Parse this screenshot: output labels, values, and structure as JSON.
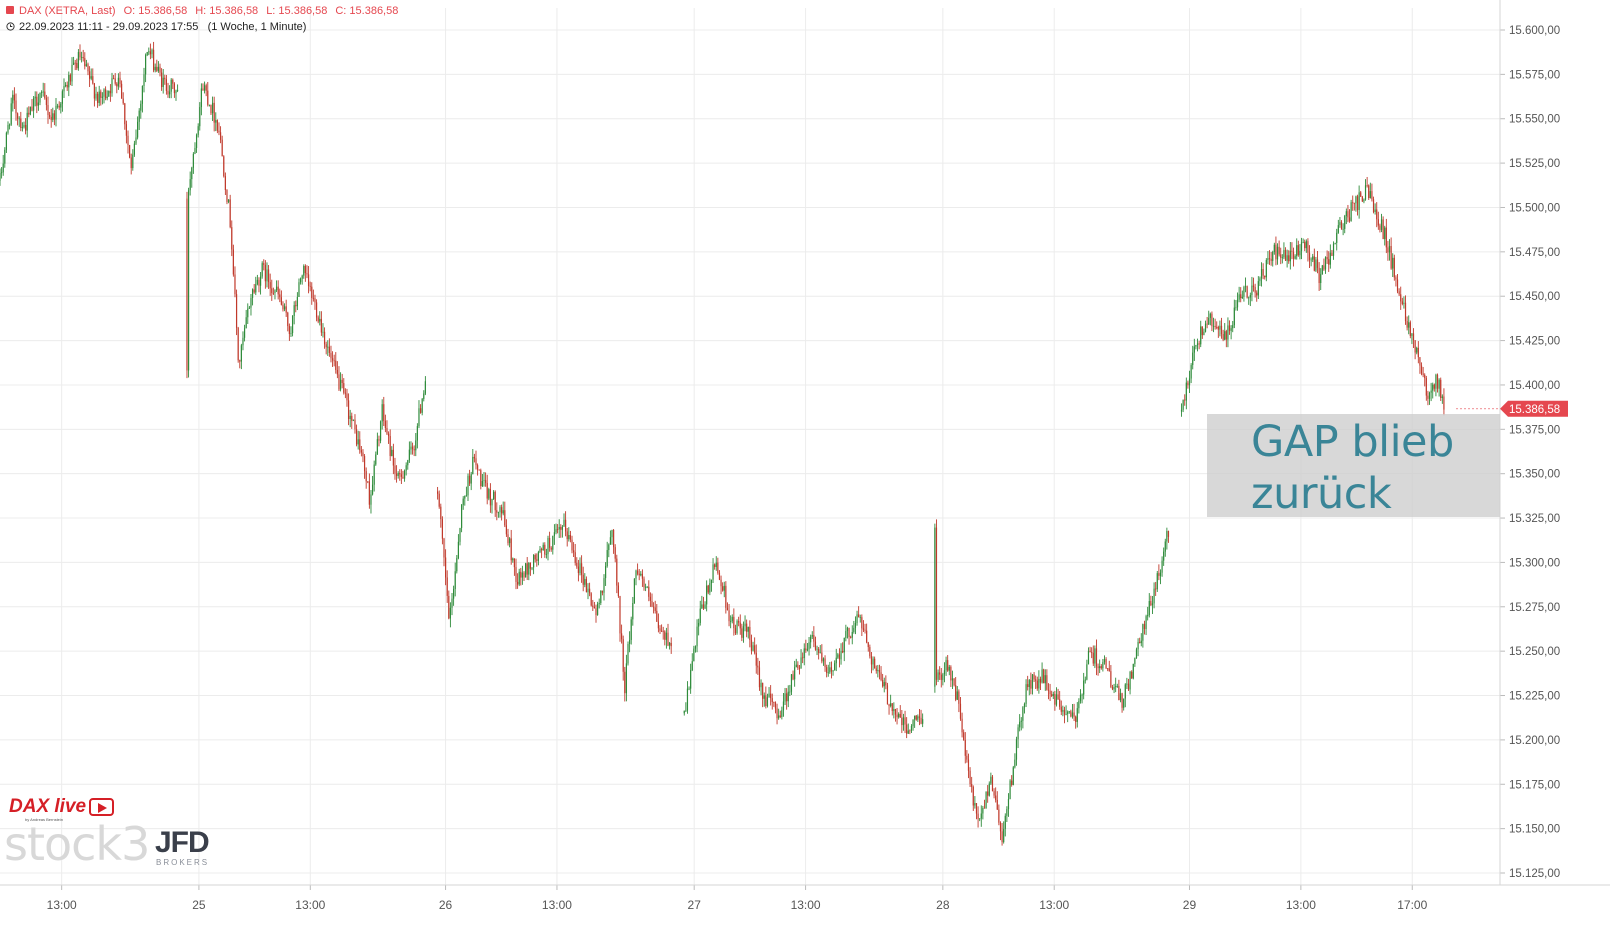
{
  "header": {
    "instrument": "DAX (XETRA, Last)",
    "open": "O: 15.386,58",
    "high": "H: 15.386,58",
    "low": "L: 15.386,58",
    "close": "C: 15.386,58",
    "range": "22.09.2023 11:11 - 29.09.2023 17:55",
    "period": "(1 Woche, 1 Minute)"
  },
  "annotation": {
    "line1": "GAP blieb",
    "line2": "zurück"
  },
  "logos": {
    "dax_live": "DAX live",
    "dax_live_sub": "by Andreas Bernstein",
    "stock3": "stock3",
    "jfd": "JFD",
    "jfd_sub": "BROKERS"
  },
  "colors": {
    "up": "#2e8b3a",
    "down": "#c0392b",
    "grid": "#ececec",
    "last_price_tag": "#e5474f",
    "axis_text": "#555555"
  },
  "chart_data": {
    "type": "candlestick",
    "title": "DAX (XETRA, Last)",
    "interval": "1 Minute",
    "span": "1 Woche",
    "last_price": 15386.58,
    "last_price_label": "15.386,58",
    "ylim": [
      15115,
      15610
    ],
    "y_ticks": [
      15125,
      15150,
      15175,
      15200,
      15225,
      15250,
      15275,
      15300,
      15325,
      15350,
      15375,
      15400,
      15425,
      15450,
      15475,
      15500,
      15525,
      15550,
      15575,
      15600
    ],
    "y_tick_labels": [
      "15.125,00",
      "15.150,00",
      "15.175,00",
      "15.200,00",
      "15.225,00",
      "15.250,00",
      "15.275,00",
      "15.300,00",
      "15.325,00",
      "15.350,00",
      "15.375,00",
      "15.400,00",
      "15.425,00",
      "15.450,00",
      "15.475,00",
      "15.500,00",
      "15.525,00",
      "15.550,00",
      "15.575,00",
      "15.600,00"
    ],
    "x_ticks": [
      {
        "label": "13:00",
        "t": 0.155
      },
      {
        "label": "25",
        "t": 0.5
      },
      {
        "label": "13:00",
        "t": 0.78
      },
      {
        "label": "26",
        "t": 1.12
      },
      {
        "label": "13:00",
        "t": 1.4
      },
      {
        "label": "27",
        "t": 1.745
      },
      {
        "label": "13:00",
        "t": 2.025
      },
      {
        "label": "28",
        "t": 2.37
      },
      {
        "label": "13:00",
        "t": 2.65
      },
      {
        "label": "29",
        "t": 2.99
      },
      {
        "label": "13:00",
        "t": 3.27
      },
      {
        "label": "17:00",
        "t": 3.55
      }
    ],
    "t_range": [
      0,
      3.67
    ],
    "sessions": [
      {
        "start": 0.0,
        "end": 0.45,
        "points": [
          [
            0.0,
            15515
          ],
          [
            0.03,
            15560
          ],
          [
            0.06,
            15545
          ],
          [
            0.1,
            15565
          ],
          [
            0.13,
            15550
          ],
          [
            0.16,
            15565
          ],
          [
            0.2,
            15585
          ],
          [
            0.25,
            15560
          ],
          [
            0.3,
            15575
          ],
          [
            0.33,
            15520
          ],
          [
            0.37,
            15590
          ],
          [
            0.41,
            15570
          ],
          [
            0.45,
            15565
          ]
        ]
      },
      {
        "start": 0.47,
        "end": 1.07,
        "points": [
          [
            0.47,
            15505
          ],
          [
            0.51,
            15570
          ],
          [
            0.55,
            15545
          ],
          [
            0.58,
            15490
          ],
          [
            0.6,
            15410
          ],
          [
            0.63,
            15450
          ],
          [
            0.66,
            15465
          ],
          [
            0.7,
            15450
          ],
          [
            0.73,
            15430
          ],
          [
            0.76,
            15465
          ],
          [
            0.8,
            15440
          ],
          [
            0.83,
            15415
          ],
          [
            0.87,
            15390
          ],
          [
            0.91,
            15360
          ],
          [
            0.93,
            15335
          ],
          [
            0.96,
            15385
          ],
          [
            1.0,
            15345
          ],
          [
            1.04,
            15365
          ],
          [
            1.07,
            15405
          ]
        ]
      },
      {
        "start": 1.1,
        "end": 1.69,
        "points": [
          [
            1.1,
            15340
          ],
          [
            1.13,
            15265
          ],
          [
            1.16,
            15330
          ],
          [
            1.19,
            15358
          ],
          [
            1.22,
            15340
          ],
          [
            1.26,
            15330
          ],
          [
            1.3,
            15290
          ],
          [
            1.34,
            15300
          ],
          [
            1.38,
            15310
          ],
          [
            1.42,
            15320
          ],
          [
            1.46,
            15295
          ],
          [
            1.5,
            15270
          ],
          [
            1.54,
            15320
          ],
          [
            1.57,
            15230
          ],
          [
            1.6,
            15300
          ],
          [
            1.63,
            15280
          ],
          [
            1.66,
            15260
          ],
          [
            1.69,
            15255
          ]
        ]
      },
      {
        "start": 1.72,
        "end": 2.32,
        "points": [
          [
            1.72,
            15215
          ],
          [
            1.76,
            15270
          ],
          [
            1.8,
            15300
          ],
          [
            1.84,
            15265
          ],
          [
            1.88,
            15260
          ],
          [
            1.92,
            15225
          ],
          [
            1.96,
            15215
          ],
          [
            2.0,
            15240
          ],
          [
            2.04,
            15260
          ],
          [
            2.08,
            15235
          ],
          [
            2.12,
            15255
          ],
          [
            2.16,
            15270
          ],
          [
            2.2,
            15240
          ],
          [
            2.24,
            15220
          ],
          [
            2.28,
            15205
          ],
          [
            2.32,
            15215
          ]
        ]
      },
      {
        "start": 2.35,
        "end": 2.94,
        "points": [
          [
            2.35,
            15230
          ],
          [
            2.38,
            15245
          ],
          [
            2.41,
            15220
          ],
          [
            2.43,
            15185
          ],
          [
            2.46,
            15150
          ],
          [
            2.49,
            15180
          ],
          [
            2.52,
            15145
          ],
          [
            2.55,
            15190
          ],
          [
            2.58,
            15230
          ],
          [
            2.62,
            15235
          ],
          [
            2.66,
            15220
          ],
          [
            2.7,
            15210
          ],
          [
            2.74,
            15250
          ],
          [
            2.78,
            15240
          ],
          [
            2.82,
            15220
          ],
          [
            2.86,
            15250
          ],
          [
            2.89,
            15275
          ],
          [
            2.92,
            15300
          ],
          [
            2.94,
            15320
          ]
        ]
      },
      {
        "start": 2.97,
        "end": 3.63,
        "points": [
          [
            2.97,
            15385
          ],
          [
            3.0,
            15420
          ],
          [
            3.04,
            15440
          ],
          [
            3.08,
            15425
          ],
          [
            3.12,
            15450
          ],
          [
            3.16,
            15455
          ],
          [
            3.2,
            15475
          ],
          [
            3.24,
            15470
          ],
          [
            3.28,
            15480
          ],
          [
            3.32,
            15460
          ],
          [
            3.36,
            15485
          ],
          [
            3.4,
            15500
          ],
          [
            3.44,
            15510
          ],
          [
            3.48,
            15485
          ],
          [
            3.52,
            15450
          ],
          [
            3.56,
            15420
          ],
          [
            3.59,
            15395
          ],
          [
            3.61,
            15405
          ],
          [
            3.63,
            15387
          ]
        ]
      }
    ]
  }
}
